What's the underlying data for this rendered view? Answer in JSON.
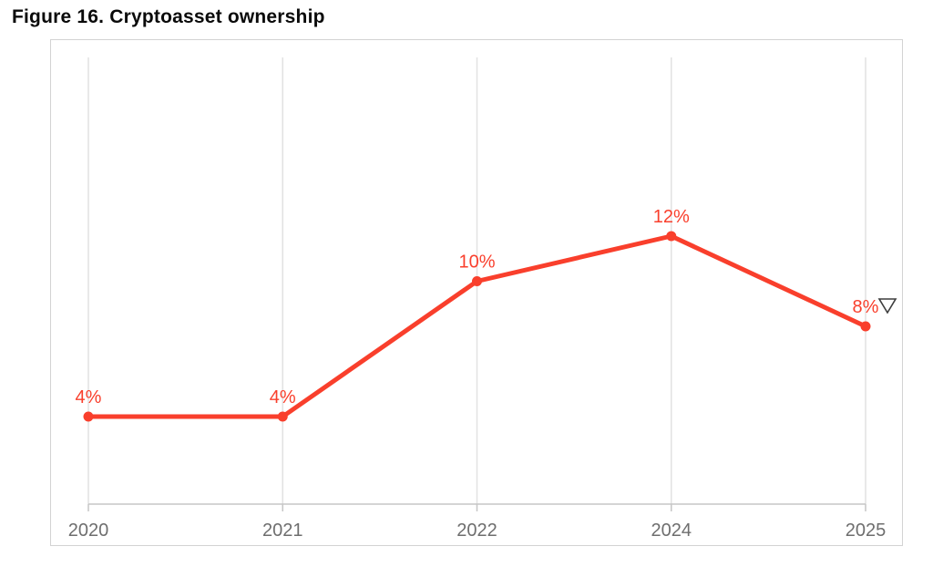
{
  "figure_title": "Figure 16. Cryptoasset ownership",
  "chart_data": {
    "type": "line",
    "title": "Figure 16. Cryptoasset ownership",
    "categories": [
      "2020",
      "2021",
      "2022",
      "2024",
      "2025"
    ],
    "series": [
      {
        "name": "Cryptoasset ownership",
        "values": [
          4,
          4,
          10,
          12,
          8
        ],
        "point_labels": [
          "4%",
          "4%",
          "10%",
          "12%",
          "8%"
        ]
      }
    ],
    "xlabel": "",
    "ylabel": "",
    "ylim": [
      0,
      20
    ],
    "grid": "vertical-only",
    "legend_position": "none",
    "last_point_indicator": "down-triangle-outline",
    "colors": {
      "line": "#f93f2c",
      "marker": "#f93f2c",
      "point_label": "#f93f2c",
      "axis_label": "#6e6e6e",
      "gridline": "#e2e2e2",
      "axis_line": "#c6c6c6",
      "frame_border": "#d3d3d3",
      "indicator_triangle": "#3d3d3d"
    }
  }
}
